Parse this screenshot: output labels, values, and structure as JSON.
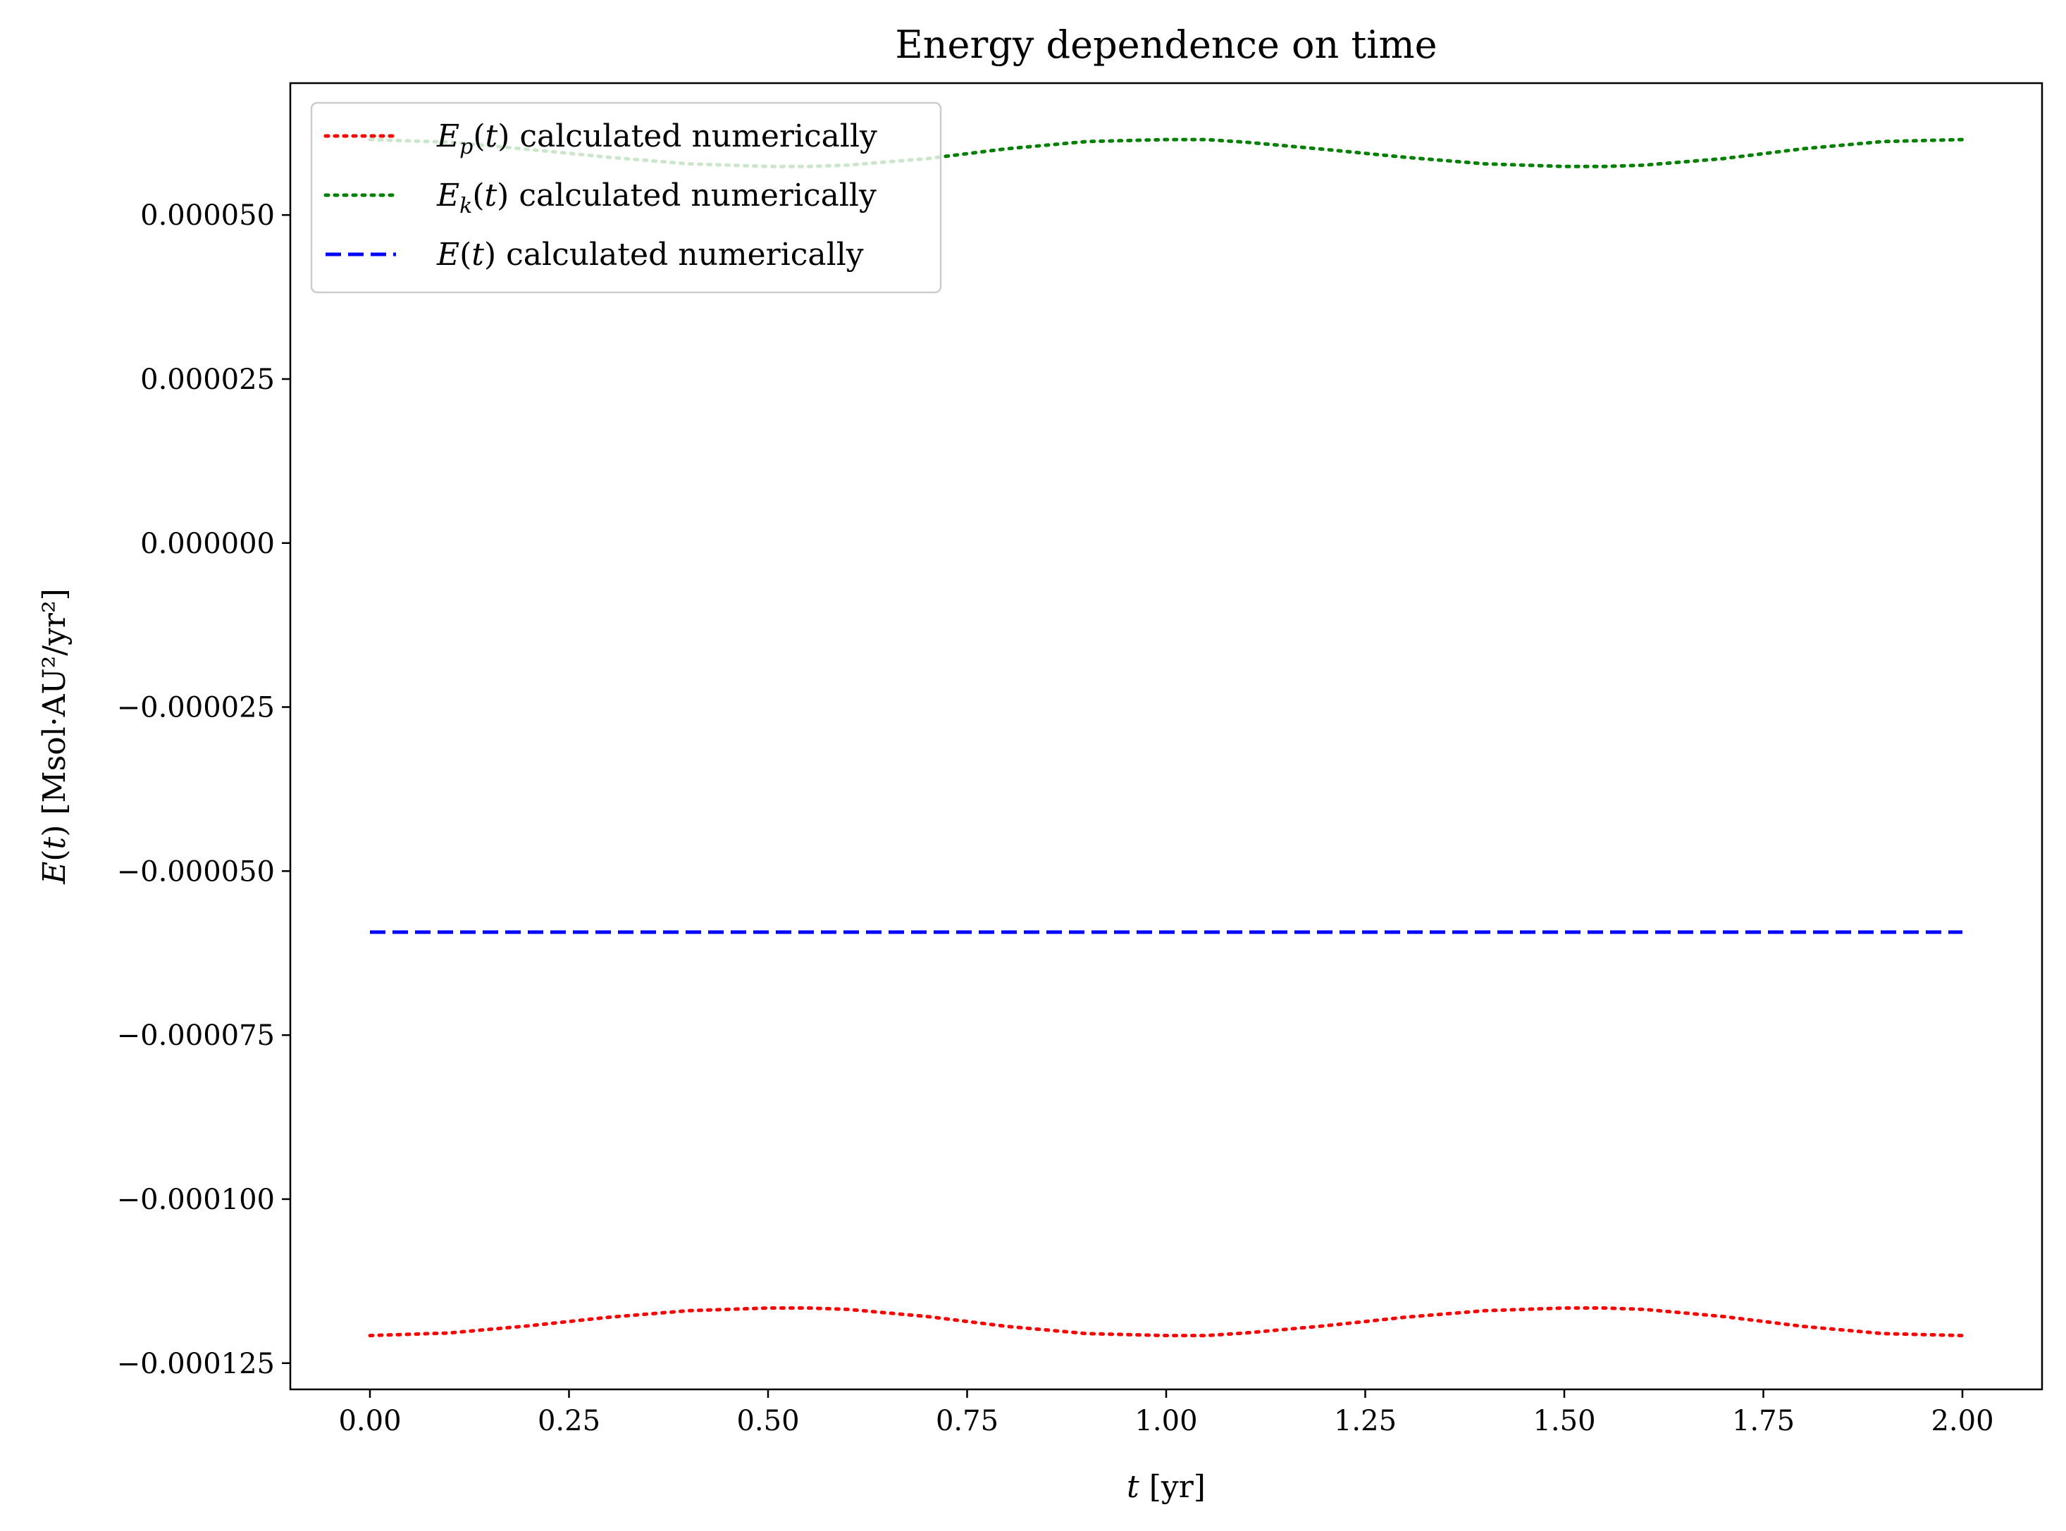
{
  "chart_data": {
    "type": "line",
    "title": "Energy dependence on time",
    "xlabel": "t [yr]",
    "ylabel": "E(t) [Msol·AU²/yr²]",
    "xlim": [
      -0.1,
      2.1
    ],
    "ylim": [
      -0.000129,
      7.01e-05
    ],
    "xticks": [
      0.0,
      0.25,
      0.5,
      0.75,
      1.0,
      1.25,
      1.5,
      1.75,
      2.0
    ],
    "xtick_labels": [
      "0.00",
      "0.25",
      "0.50",
      "0.75",
      "1.00",
      "1.25",
      "1.50",
      "1.75",
      "2.00"
    ],
    "yticks": [
      5e-05,
      2.5e-05,
      0.0,
      -2.5e-05,
      -5e-05,
      -7.5e-05,
      -0.0001,
      -0.000125
    ],
    "ytick_labels": [
      "0.000050",
      "0.000025",
      "0.000000",
      "−0.000025",
      "−0.000050",
      "−0.000075",
      "−0.000100",
      "−0.000125"
    ],
    "grid": false,
    "legend_position": "top-left",
    "series": [
      {
        "name": "E_p(t) calculated numerically",
        "legend_label": "calculated numerically",
        "legend_symbol": "E",
        "legend_sub": "p",
        "color": "#ff0000",
        "style": "dotted",
        "x": [
          0.0,
          0.1,
          0.2,
          0.3,
          0.4,
          0.5,
          0.55,
          0.6,
          0.7,
          0.8,
          0.9,
          1.0,
          1.05,
          1.1,
          1.2,
          1.3,
          1.4,
          1.5,
          1.55,
          1.6,
          1.7,
          1.8,
          1.9,
          2.0
        ],
        "y": [
          -0.0001208,
          -0.0001204,
          -0.0001193,
          -0.000118,
          -0.000117,
          -0.0001166,
          -0.0001166,
          -0.0001168,
          -0.0001179,
          -0.0001194,
          -0.0001205,
          -0.0001208,
          -0.0001208,
          -0.0001204,
          -0.0001193,
          -0.000118,
          -0.000117,
          -0.0001166,
          -0.0001166,
          -0.0001168,
          -0.0001179,
          -0.0001194,
          -0.0001205,
          -0.0001208
        ]
      },
      {
        "name": "E_k(t) calculated numerically",
        "legend_label": "calculated numerically",
        "legend_symbol": "E",
        "legend_sub": "k",
        "color": "#008000",
        "style": "dotted",
        "x": [
          0.0,
          0.1,
          0.2,
          0.3,
          0.4,
          0.5,
          0.55,
          0.6,
          0.7,
          0.8,
          0.9,
          1.0,
          1.05,
          1.1,
          1.2,
          1.3,
          1.4,
          1.5,
          1.55,
          1.6,
          1.7,
          1.8,
          1.9,
          2.0
        ],
        "y": [
          6.15e-05,
          6.11e-05,
          6e-05,
          5.88e-05,
          5.78e-05,
          5.74e-05,
          5.74e-05,
          5.76e-05,
          5.86e-05,
          6.01e-05,
          6.12e-05,
          6.15e-05,
          6.15e-05,
          6.11e-05,
          6e-05,
          5.88e-05,
          5.78e-05,
          5.74e-05,
          5.74e-05,
          5.76e-05,
          5.86e-05,
          6.01e-05,
          6.12e-05,
          6.15e-05
        ]
      },
      {
        "name": "E(t) calculated numerically",
        "legend_label": "calculated numerically",
        "legend_symbol": "E",
        "legend_sub": "",
        "color": "#0000ff",
        "style": "dashed",
        "x": [
          0.0,
          2.0
        ],
        "y": [
          -5.93e-05,
          -5.93e-05
        ]
      }
    ]
  }
}
